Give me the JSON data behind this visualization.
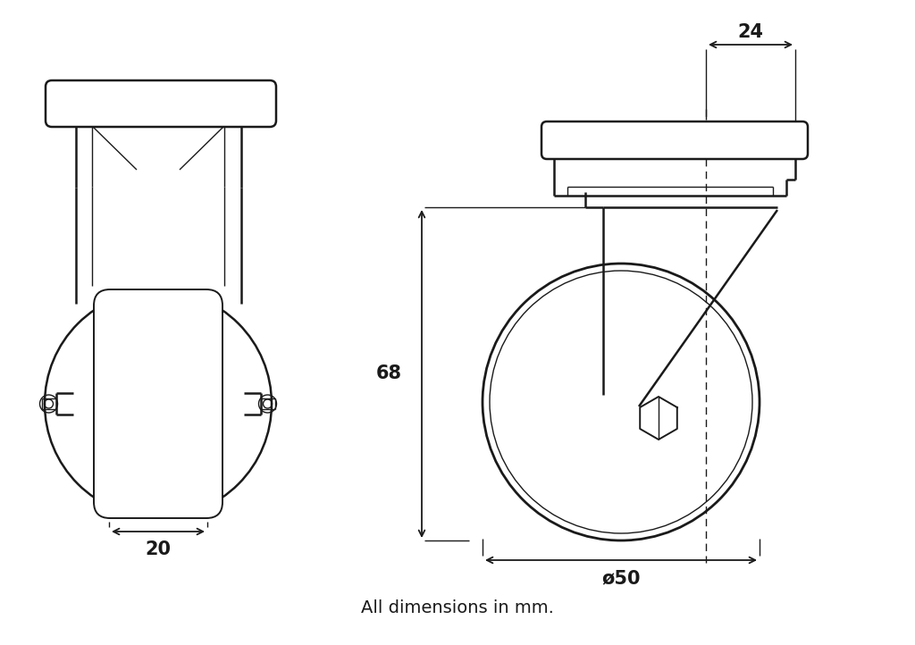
{
  "background_color": "#ffffff",
  "line_color": "#1a1a1a",
  "font_size_dim": 15,
  "font_size_label": 14,
  "bottom_text": "All dimensions in mm.",
  "dim_20": "20",
  "dim_24": "24",
  "dim_68": "68",
  "dim_50": "ø50",
  "lw": 1.8,
  "lw_thin": 1.0,
  "lw_med": 1.4
}
